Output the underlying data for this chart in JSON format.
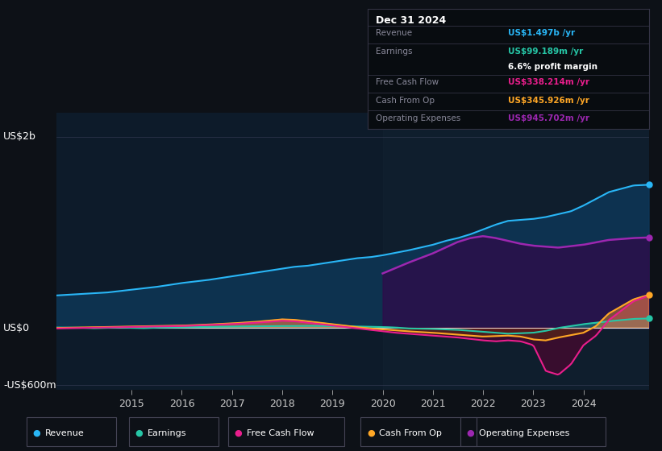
{
  "background_color": "#0d1117",
  "plot_bg_color": "#0d1b2a",
  "colors": {
    "revenue": "#29b6f6",
    "earnings": "#26c6a6",
    "free_cash_flow": "#e91e8c",
    "cash_from_op": "#ffa726",
    "operating_expenses": "#9c27b0"
  },
  "info_box": {
    "date": "Dec 31 2024",
    "revenue_label": "Revenue",
    "revenue_value": "US$1.497b /yr",
    "revenue_color": "#29b6f6",
    "earnings_label": "Earnings",
    "earnings_value": "US$99.189m /yr",
    "earnings_color": "#26c6a6",
    "margin_text": "6.6% profit margin",
    "fcf_label": "Free Cash Flow",
    "fcf_value": "US$338.214m /yr",
    "fcf_color": "#e91e8c",
    "cfop_label": "Cash From Op",
    "cfop_value": "US$345.926m /yr",
    "cfop_color": "#ffa726",
    "opex_label": "Operating Expenses",
    "opex_value": "US$945.702m /yr",
    "opex_color": "#9c27b0"
  },
  "legend_items": [
    "Revenue",
    "Earnings",
    "Free Cash Flow",
    "Cash From Op",
    "Operating Expenses"
  ],
  "legend_colors": [
    "#29b6f6",
    "#26c6a6",
    "#e91e8c",
    "#ffa726",
    "#9c27b0"
  ],
  "ylabel_top": "US$2b",
  "ylabel_zero": "US$0",
  "ylabel_bottom": "-US$600m",
  "x_tick_labels": [
    "2015",
    "2016",
    "2017",
    "2018",
    "2019",
    "2020",
    "2021",
    "2022",
    "2023",
    "2024"
  ],
  "x_tick_positions": [
    2015,
    2016,
    2017,
    2018,
    2019,
    2020,
    2021,
    2022,
    2023,
    2024
  ],
  "xlim": [
    2013.5,
    2025.3
  ],
  "ylim": [
    -650,
    2250
  ]
}
